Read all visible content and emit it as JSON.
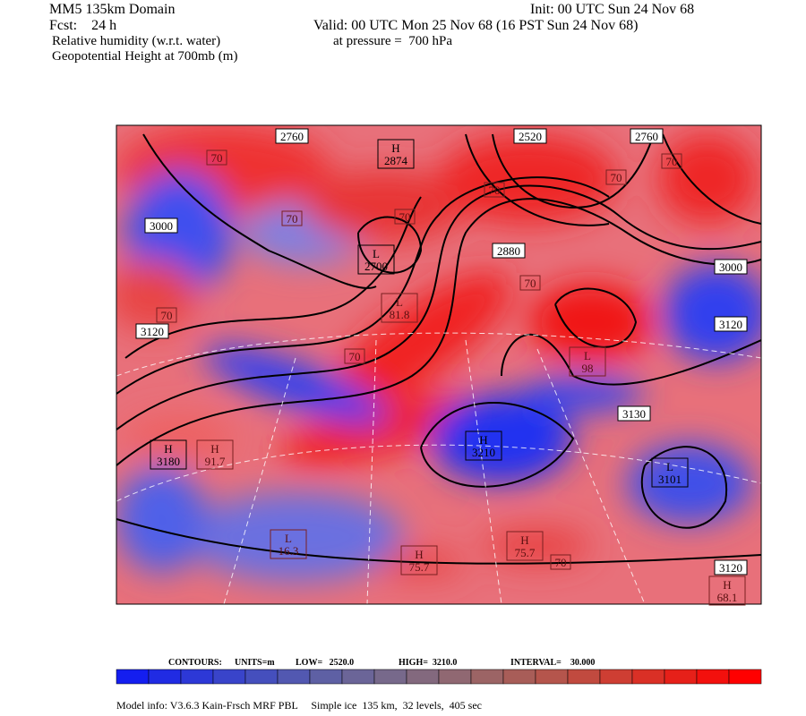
{
  "header": {
    "model": "MM5 135km Domain",
    "init": "Init: 00 UTC Sun 24 Nov 68",
    "fcst": "Fcst:    24 h",
    "valid": "Valid: 00 UTC Mon 25 Nov 68 (16 PST Sun 24 Nov 68)",
    "field1": "Relative humidity (w.r.t. water)",
    "pressure": "at pressure =  700 hPa",
    "field2": "Geopotential Height at 700mb (m)"
  },
  "map": {
    "contour_labels": [
      "2760",
      "2520",
      "2760",
      "3000",
      "2880",
      "3000",
      "3120",
      "3120",
      "3130",
      "3120"
    ],
    "extremes": [
      {
        "kind": "H",
        "value": "2874"
      },
      {
        "kind": "L",
        "value": "2700"
      },
      {
        "kind": "H",
        "value": "3210"
      },
      {
        "kind": "H",
        "value": "3180"
      },
      {
        "kind": "L",
        "value": "3101"
      },
      {
        "kind": "H",
        "value": "91.7"
      },
      {
        "kind": "L",
        "value": "16.3"
      },
      {
        "kind": "H",
        "value": "75.7"
      },
      {
        "kind": "H",
        "value": "75.7"
      },
      {
        "kind": "H",
        "value": "68.1"
      },
      {
        "kind": "L",
        "value": "81.8"
      },
      {
        "kind": "L",
        "value": "98"
      }
    ],
    "rh_labels": [
      "70",
      "70",
      "70",
      "70",
      "70",
      "70",
      "70",
      "70",
      "70",
      "70"
    ]
  },
  "contours_info": {
    "label": "CONTOURS:",
    "units": "UNITS=m",
    "low": "LOW=   2520.0",
    "high": "HIGH=  3210.0",
    "interval": "INTERVAL=    30.000"
  },
  "footer": "Model info: V3.6.3 Kain-Frsch MRF PBL     Simple ice  135 km,  32 levels,  405 sec"
}
